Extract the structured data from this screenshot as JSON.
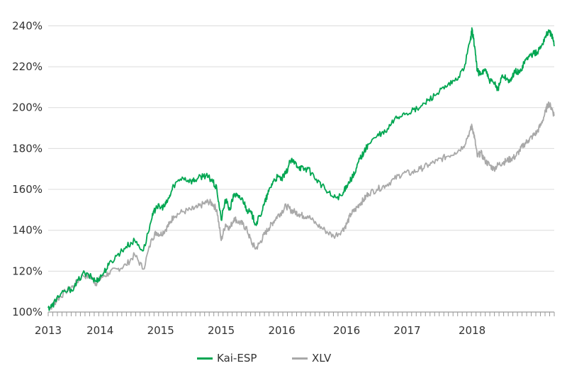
{
  "chart_data": {
    "type": "line",
    "title": "",
    "xlabel": "",
    "ylabel": "",
    "ylim": [
      100,
      245
    ],
    "xlim": [
      2013.0,
      2018.85
    ],
    "y_ticks": [
      "100%",
      "120%",
      "140%",
      "160%",
      "180%",
      "200%",
      "220%",
      "240%"
    ],
    "y_tick_values": [
      100,
      120,
      140,
      160,
      180,
      200,
      220,
      240
    ],
    "x_tick_labels": [
      "2013",
      "2014",
      "2015",
      "2015",
      "2016",
      "2016",
      "2017",
      "2018"
    ],
    "x_tick_values": [
      2013.0,
      2013.6,
      2014.3,
      2015.0,
      2015.7,
      2016.45,
      2017.15,
      2017.9
    ],
    "grid": "horizontal",
    "legend_position": "bottom-center",
    "series": [
      {
        "name": "Kai-ESP",
        "color": "#00a651",
        "x": [
          2013.0,
          2013.05,
          2013.1,
          2013.2,
          2013.3,
          2013.4,
          2013.5,
          2013.55,
          2013.62,
          2013.7,
          2013.8,
          2013.9,
          2014.0,
          2014.1,
          2014.2,
          2014.25,
          2014.3,
          2014.35,
          2014.4,
          2014.45,
          2014.55,
          2014.65,
          2014.72,
          2014.8,
          2014.85,
          2014.9,
          2014.95,
          2015.0,
          2015.05,
          2015.1,
          2015.15,
          2015.2,
          2015.25,
          2015.3,
          2015.35,
          2015.4,
          2015.45,
          2015.5,
          2015.55,
          2015.6,
          2015.65,
          2015.7,
          2015.75,
          2015.8,
          2015.85,
          2015.9,
          2015.95,
          2016.0,
          2016.1,
          2016.2,
          2016.3,
          2016.4,
          2016.45,
          2016.5,
          2016.55,
          2016.6,
          2016.65,
          2016.7,
          2016.8,
          2016.9,
          2017.0,
          2017.1,
          2017.2,
          2017.3,
          2017.4,
          2017.5,
          2017.6,
          2017.7,
          2017.8,
          2017.88,
          2017.9,
          2017.93,
          2017.96,
          2018.0,
          2018.05,
          2018.1,
          2018.15,
          2018.2,
          2018.25,
          2018.3,
          2018.35,
          2018.4,
          2018.45,
          2018.5,
          2018.55,
          2018.6,
          2018.65,
          2018.7,
          2018.75,
          2018.78,
          2018.82,
          2018.85
        ],
        "values": [
          102,
          103,
          107,
          110,
          112,
          119,
          117,
          115,
          118,
          123,
          128,
          132,
          135,
          130,
          146,
          152,
          151,
          152,
          156,
          162,
          166,
          164,
          165,
          167,
          166,
          164,
          160,
          145,
          155,
          150,
          158,
          156,
          155,
          150,
          148,
          143,
          147,
          153,
          159,
          164,
          166,
          165,
          168,
          174,
          173,
          171,
          170,
          170,
          165,
          160,
          156,
          157,
          162,
          165,
          168,
          175,
          178,
          182,
          186,
          188,
          194,
          197,
          198,
          200,
          204,
          207,
          210,
          213,
          218,
          233,
          238,
          230,
          218,
          216,
          219,
          213,
          212,
          209,
          216,
          214,
          213,
          218,
          217,
          222,
          225,
          226,
          227,
          230,
          235,
          237,
          236,
          230
        ],
        "x_note": "fractional years along the axis scale"
      },
      {
        "name": "XLV",
        "color": "#a9a9a9",
        "x": [
          2013.0,
          2013.05,
          2013.1,
          2013.2,
          2013.3,
          2013.4,
          2013.5,
          2013.55,
          2013.62,
          2013.7,
          2013.8,
          2013.9,
          2014.0,
          2014.1,
          2014.2,
          2014.25,
          2014.3,
          2014.35,
          2014.4,
          2014.45,
          2014.55,
          2014.65,
          2014.72,
          2014.8,
          2014.85,
          2014.9,
          2014.95,
          2015.0,
          2015.05,
          2015.1,
          2015.15,
          2015.2,
          2015.25,
          2015.3,
          2015.35,
          2015.4,
          2015.45,
          2015.5,
          2015.55,
          2015.6,
          2015.65,
          2015.7,
          2015.75,
          2015.8,
          2015.85,
          2015.9,
          2015.95,
          2016.0,
          2016.1,
          2016.2,
          2016.3,
          2016.4,
          2016.45,
          2016.5,
          2016.55,
          2016.6,
          2016.65,
          2016.7,
          2016.8,
          2016.9,
          2017.0,
          2017.1,
          2017.2,
          2017.3,
          2017.4,
          2017.5,
          2017.6,
          2017.7,
          2017.8,
          2017.88,
          2017.9,
          2017.93,
          2017.96,
          2018.0,
          2018.05,
          2018.1,
          2018.15,
          2018.2,
          2018.25,
          2018.3,
          2018.35,
          2018.4,
          2018.45,
          2018.5,
          2018.55,
          2018.6,
          2018.65,
          2018.7,
          2018.75,
          2018.78,
          2018.82,
          2018.85
        ],
        "values": [
          102,
          103,
          106,
          110,
          113,
          118,
          117,
          114,
          117,
          119,
          121,
          123,
          128,
          121,
          136,
          139,
          138,
          140,
          143,
          147,
          149,
          150,
          151,
          153,
          154,
          153,
          150,
          135,
          143,
          141,
          146,
          144,
          143,
          140,
          134,
          131,
          134,
          138,
          141,
          144,
          147,
          149,
          152,
          150,
          149,
          148,
          147,
          147,
          143,
          140,
          137,
          140,
          143,
          148,
          150,
          153,
          155,
          158,
          160,
          162,
          165,
          168,
          168,
          170,
          172,
          174,
          176,
          178,
          181,
          189,
          191,
          185,
          176,
          178,
          174,
          172,
          170,
          172,
          173,
          174,
          175,
          176,
          179,
          182,
          184,
          186,
          188,
          192,
          198,
          202,
          200,
          196
        ],
        "x_note": "fractional years along the axis scale"
      }
    ]
  }
}
